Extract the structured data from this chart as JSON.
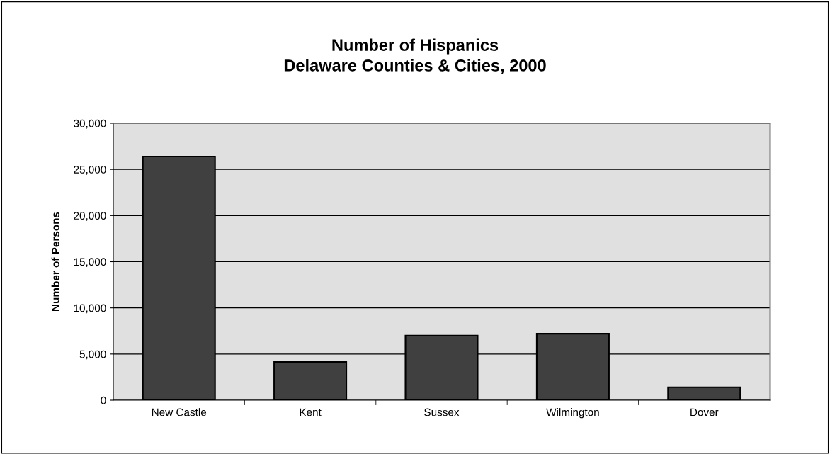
{
  "chart_data": {
    "type": "bar",
    "title": "Number of Hispanics\nDelaware Counties & Cities, 2000",
    "ylabel": "Number of Persons",
    "categories": [
      "New Castle",
      "Kent",
      "Sussex",
      "Wilmington",
      "Dover"
    ],
    "values": [
      26400,
      4150,
      7000,
      7200,
      1400
    ],
    "color": "#404040",
    "ylim": [
      0,
      30000
    ],
    "yticks": [
      {
        "value": 0,
        "label": "0"
      },
      {
        "value": 5000,
        "label": "5,000"
      },
      {
        "value": 10000,
        "label": "10,000"
      },
      {
        "value": 15000,
        "label": "15,000"
      },
      {
        "value": 20000,
        "label": "20,000"
      },
      {
        "value": 25000,
        "label": "25,000"
      },
      {
        "value": 30000,
        "label": "30,000"
      }
    ],
    "grid": "y",
    "legend": false
  }
}
